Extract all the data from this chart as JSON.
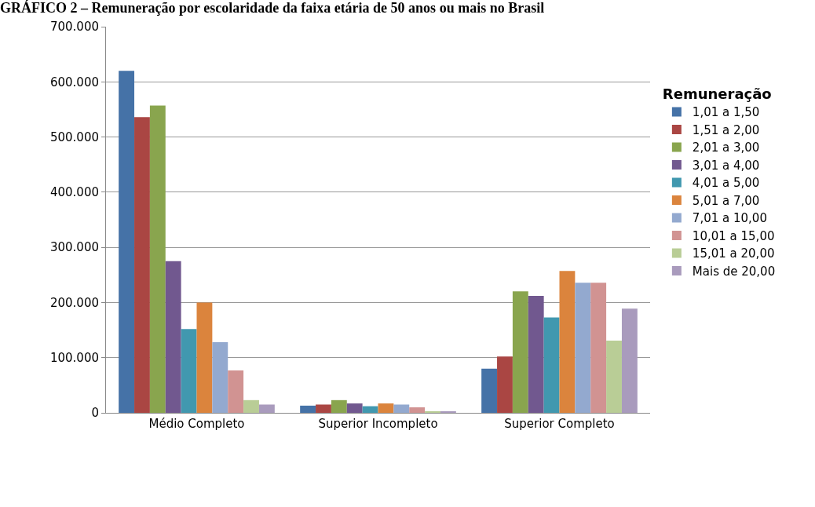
{
  "chart_data": {
    "type": "bar",
    "title": "GRÁFICO 2 – Remuneração por escolaridade da faixa etária de 50 anos ou mais no Brasil",
    "categories": [
      "Médio Completo",
      "Superior Incompleto",
      "Superior Completo"
    ],
    "legend_title": "Remuneração",
    "legend": "right",
    "ylim": [
      0,
      700000
    ],
    "yticks": [
      {
        "value": 0,
        "label": "0"
      },
      {
        "value": 100000,
        "label": "100.000"
      },
      {
        "value": 200000,
        "label": "200.000"
      },
      {
        "value": 300000,
        "label": "300.000"
      },
      {
        "value": 400000,
        "label": "400.000"
      },
      {
        "value": 500000,
        "label": "500.000"
      },
      {
        "value": 600000,
        "label": "600.000"
      },
      {
        "value": 700000,
        "label": "700.000"
      }
    ],
    "grid": "y",
    "series": [
      {
        "name": "1,01 a 1,50",
        "color": "#4572a7",
        "values": [
          620000,
          13000,
          80000
        ]
      },
      {
        "name": "1,51 a 2,00",
        "color": "#aa4643",
        "values": [
          536000,
          15000,
          102000
        ]
      },
      {
        "name": "2,01 a 3,00",
        "color": "#89a54e",
        "values": [
          557000,
          23000,
          220000
        ]
      },
      {
        "name": "3,01 a 4,00",
        "color": "#71588f",
        "values": [
          275000,
          17000,
          212000
        ]
      },
      {
        "name": "4,01 a 5,00",
        "color": "#4198af",
        "values": [
          152000,
          12000,
          173000
        ]
      },
      {
        "name": "5,01 a 7,00",
        "color": "#db843d",
        "values": [
          200000,
          17000,
          257000
        ]
      },
      {
        "name": "7,01 a 10,00",
        "color": "#93a9cf",
        "values": [
          128000,
          15000,
          236000
        ]
      },
      {
        "name": "10,01 a 15,00",
        "color": "#d19392",
        "values": [
          77000,
          10000,
          236000
        ]
      },
      {
        "name": "15,01 a 20,00",
        "color": "#b9cd96",
        "values": [
          23000,
          3000,
          131000
        ]
      },
      {
        "name": "Mais de 20,00",
        "color": "#a99bbd",
        "values": [
          15000,
          2000,
          189000
        ]
      }
    ]
  }
}
